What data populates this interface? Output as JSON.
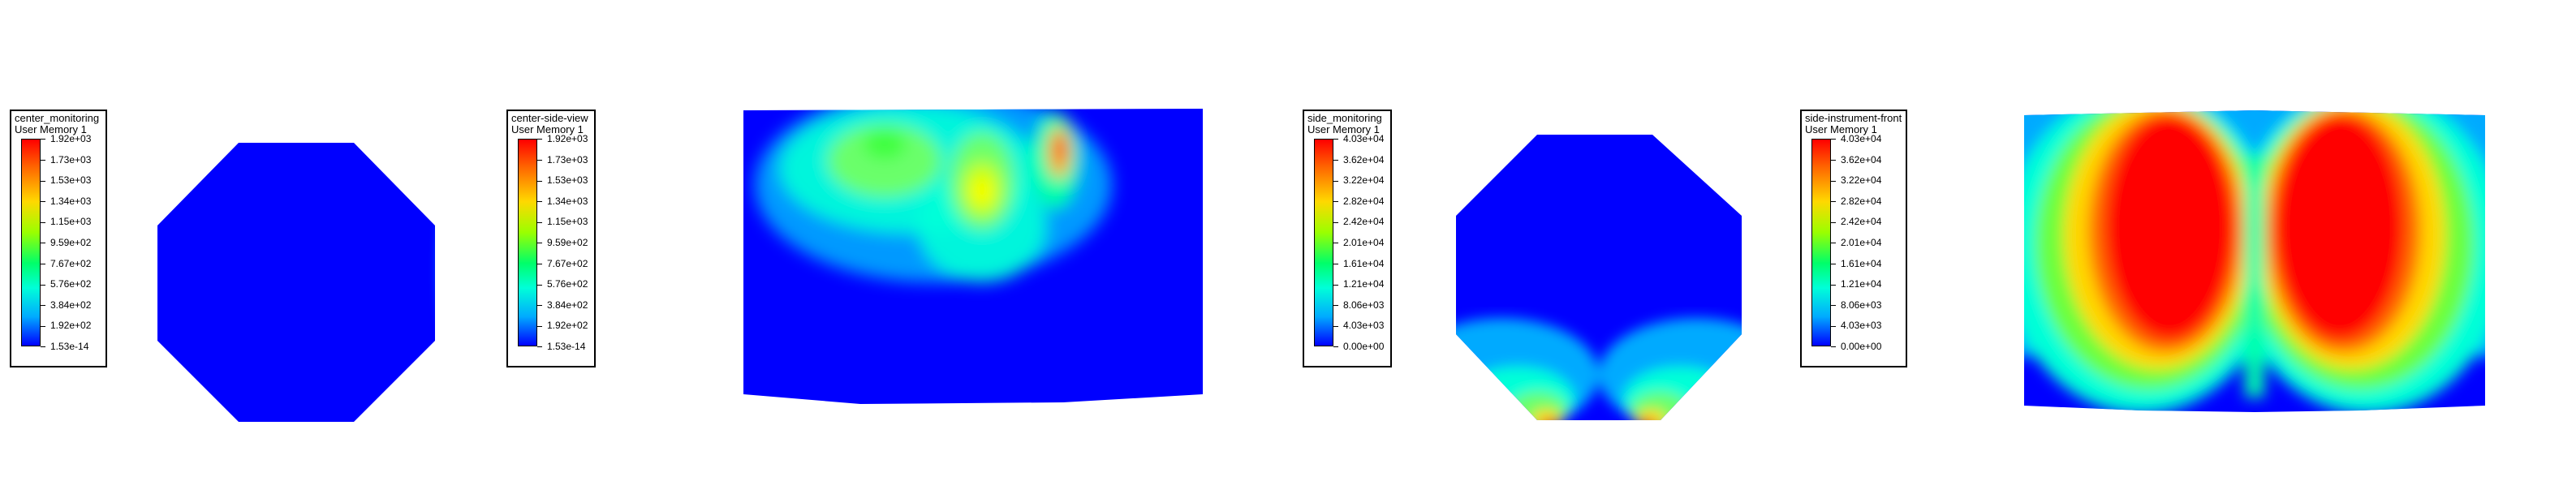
{
  "panels": [
    {
      "legend_title": "center_monitoring",
      "legend_subtitle": "User Memory 1",
      "ticks": [
        "1.92e+03",
        "1.73e+03",
        "1.53e+03",
        "1.34e+03",
        "1.15e+03",
        "9.59e+02",
        "7.67e+02",
        "5.76e+02",
        "3.84e+02",
        "1.92e+02",
        "1.53e-14"
      ]
    },
    {
      "legend_title": "center-side-view",
      "legend_subtitle": "User Memory 1",
      "ticks": [
        "1.92e+03",
        "1.73e+03",
        "1.53e+03",
        "1.34e+03",
        "1.15e+03",
        "9.59e+02",
        "7.67e+02",
        "5.76e+02",
        "3.84e+02",
        "1.92e+02",
        "1.53e-14"
      ]
    },
    {
      "legend_title": "side_monitoring",
      "legend_subtitle": "User Memory 1",
      "ticks": [
        "4.03e+04",
        "3.62e+04",
        "3.22e+04",
        "2.82e+04",
        "2.42e+04",
        "2.01e+04",
        "1.61e+04",
        "1.21e+04",
        "8.06e+03",
        "4.03e+03",
        "0.00e+00"
      ]
    },
    {
      "legend_title": "side-instrument-front",
      "legend_subtitle": "User Memory 1",
      "ticks": [
        "4.03e+04",
        "3.62e+04",
        "3.22e+04",
        "2.82e+04",
        "2.42e+04",
        "2.01e+04",
        "1.61e+04",
        "1.21e+04",
        "8.06e+03",
        "4.03e+03",
        "0.00e+00"
      ]
    }
  ],
  "colors": {
    "low": "#0000ff",
    "mid": "#00ff00",
    "high": "#ff0000"
  }
}
